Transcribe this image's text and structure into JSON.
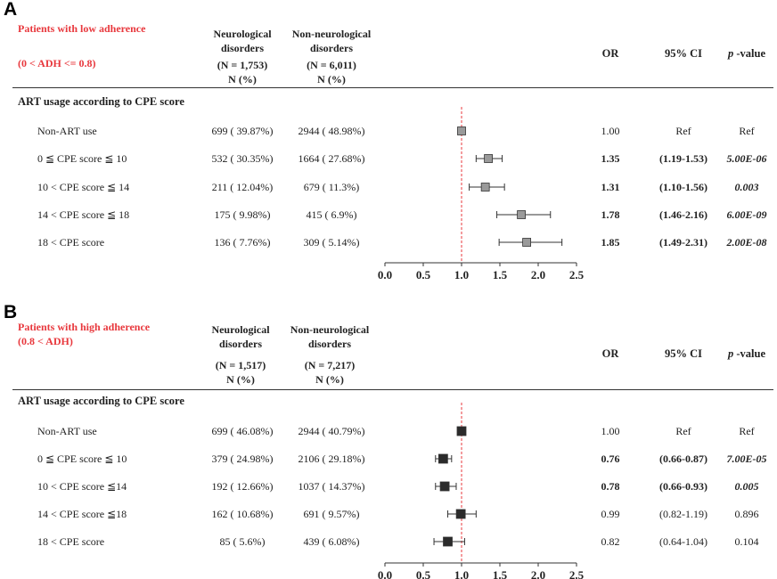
{
  "chart_data": [
    {
      "type": "forest",
      "panel_label": "A",
      "title": "Patients with low adherence",
      "subtitle": "(0 < ADH <= 0.8)",
      "section_header": "ART usage according to CPE score",
      "columns": {
        "group1": [
          "Neurological",
          "disorders",
          "(N = 1,753)",
          "N (%)"
        ],
        "group2": [
          "Non-neurological",
          "disorders",
          "(N = 6,011)",
          "N (%)"
        ],
        "or": "OR",
        "ci": "95% CI",
        "p_prefix": "p",
        "p_suffix": " -value"
      },
      "x_axis": {
        "ticks": [
          "0.0",
          "0.5",
          "1.0",
          "1.5",
          "2.0",
          "2.5"
        ],
        "range": [
          0,
          2.5
        ],
        "reference": 1.0
      },
      "marker_color": "#9a9a9a",
      "rows": [
        {
          "label": "Non-ART use",
          "neuro": "699 ( 39.87%)",
          "nonneuro": "2944 ( 48.98%)",
          "or_text": "1.00",
          "ci_text": "Ref",
          "p_text": "Ref",
          "or": 1.0,
          "lo": 1.0,
          "hi": 1.0,
          "sig": false,
          "ref": true
        },
        {
          "label": "0 ≦ CPE score ≦ 10",
          "neuro": "532 ( 30.35%)",
          "nonneuro": "1664 ( 27.68%)",
          "or_text": "1.35",
          "ci_text": "(1.19-1.53)",
          "p_text": "5.00E-06",
          "or": 1.35,
          "lo": 1.19,
          "hi": 1.53,
          "sig": true,
          "ref": false
        },
        {
          "label": "10 < CPE score ≦ 14",
          "neuro": "211 ( 12.04%)",
          "nonneuro": "679 ( 11.3%)",
          "or_text": "1.31",
          "ci_text": "(1.10-1.56)",
          "p_text": "0.003",
          "or": 1.31,
          "lo": 1.1,
          "hi": 1.56,
          "sig": true,
          "ref": false
        },
        {
          "label": "14 < CPE score ≦ 18",
          "neuro": "175 ( 9.98%)",
          "nonneuro": "415 ( 6.9%)",
          "or_text": "1.78",
          "ci_text": "(1.46-2.16)",
          "p_text": "6.00E-09",
          "or": 1.78,
          "lo": 1.46,
          "hi": 2.16,
          "sig": true,
          "ref": false
        },
        {
          "label": "18 < CPE score",
          "neuro": "136 ( 7.76%)",
          "nonneuro": "309 ( 5.14%)",
          "or_text": "1.85",
          "ci_text": "(1.49-2.31)",
          "p_text": "2.00E-08",
          "or": 1.85,
          "lo": 1.49,
          "hi": 2.31,
          "sig": true,
          "ref": false
        }
      ]
    },
    {
      "type": "forest",
      "panel_label": "B",
      "title": "Patients with high adherence",
      "subtitle": "(0.8 < ADH)",
      "section_header": "ART usage according to CPE score",
      "columns": {
        "group1": [
          "Neurological",
          "disorders",
          "(N = 1,517)",
          "N (%)"
        ],
        "group2": [
          "Non-neurological",
          "disorders",
          "(N = 7,217)",
          "N (%)"
        ],
        "or": "OR",
        "ci": "95% CI",
        "p_prefix": "p",
        "p_suffix": " -value"
      },
      "x_axis": {
        "ticks": [
          "0.0",
          "0.5",
          "1.0",
          "1.5",
          "2.0",
          "2.5"
        ],
        "range": [
          0,
          2.5
        ],
        "reference": 1.0
      },
      "marker_color": "#2b2b2b",
      "rows": [
        {
          "label": "Non-ART use",
          "neuro": "699 ( 46.08%)",
          "nonneuro": "2944 ( 40.79%)",
          "or_text": "1.00",
          "ci_text": "Ref",
          "p_text": "Ref",
          "or": 1.0,
          "lo": 1.0,
          "hi": 1.0,
          "sig": false,
          "ref": true
        },
        {
          "label": "0 ≦ CPE score ≦ 10",
          "neuro": "379 ( 24.98%)",
          "nonneuro": "2106 ( 29.18%)",
          "or_text": "0.76",
          "ci_text": "(0.66-0.87)",
          "p_text": "7.00E-05",
          "or": 0.76,
          "lo": 0.66,
          "hi": 0.87,
          "sig": true,
          "ref": false
        },
        {
          "label": "10 < CPE score ≦14",
          "neuro": "192 ( 12.66%)",
          "nonneuro": "1037 ( 14.37%)",
          "or_text": "0.78",
          "ci_text": "(0.66-0.93)",
          "p_text": "0.005",
          "or": 0.78,
          "lo": 0.66,
          "hi": 0.93,
          "sig": true,
          "ref": false
        },
        {
          "label": "14 < CPE score ≦18",
          "neuro": "162 ( 10.68%)",
          "nonneuro": "691 ( 9.57%)",
          "or_text": "0.99",
          "ci_text": "(0.82-1.19)",
          "p_text": "0.896",
          "or": 0.99,
          "lo": 0.82,
          "hi": 1.19,
          "sig": false,
          "ref": false
        },
        {
          "label": "18 < CPE score",
          "neuro": "85 ( 5.6%)",
          "nonneuro": "439 ( 6.08%)",
          "or_text": "0.82",
          "ci_text": "(0.64-1.04)",
          "p_text": "0.104",
          "or": 0.82,
          "lo": 0.64,
          "hi": 1.04,
          "sig": false,
          "ref": false
        }
      ]
    }
  ]
}
